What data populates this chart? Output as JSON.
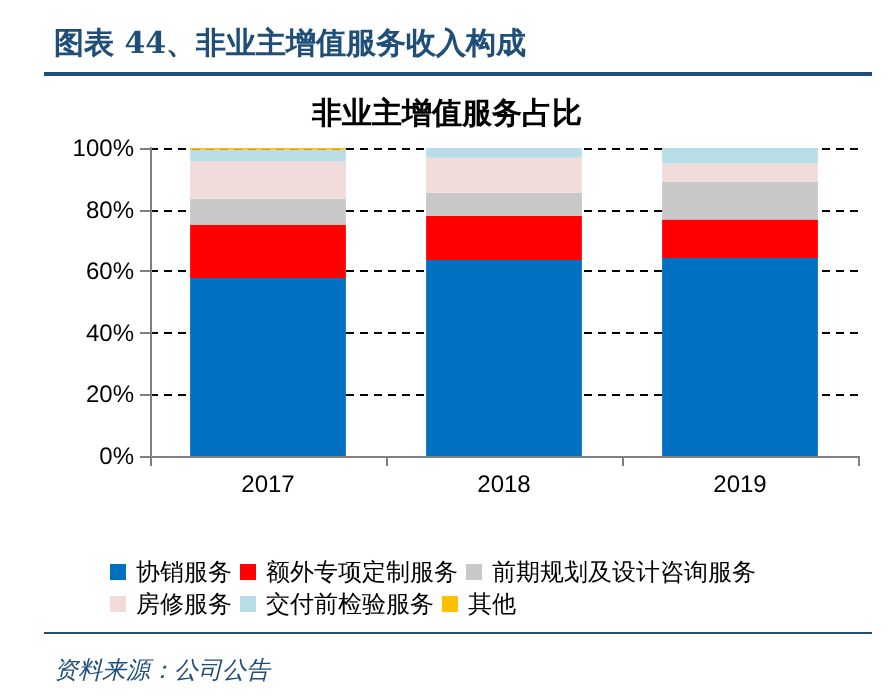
{
  "chart_data": {
    "type": "bar",
    "title": "图表 44、非业主增值服务收入构成",
    "subtitle": "非业主增值服务占比",
    "stacked": true,
    "categories": [
      "2017",
      "2018",
      "2019"
    ],
    "series": [
      {
        "name": "协销服务",
        "color": "#0070c0",
        "values": [
          57.8,
          63.6,
          64.3
        ]
      },
      {
        "name": "额外专项定制服务",
        "color": "#ff0000",
        "values": [
          17.3,
          14.3,
          12.5
        ]
      },
      {
        "name": "前期规划及设计咨询服务",
        "color": "#c8c8c8",
        "values": [
          8.4,
          7.6,
          12.2
        ]
      },
      {
        "name": "房修服务",
        "color": "#f2dcdb",
        "values": [
          12.2,
          11.3,
          6.0
        ]
      },
      {
        "name": "交付前检验服务",
        "color": "#b7dee8",
        "values": [
          3.7,
          3.2,
          5.0
        ]
      },
      {
        "name": "其他",
        "color": "#ffc000",
        "values": [
          0.6,
          0.0,
          0.0
        ]
      }
    ],
    "ylim": [
      0,
      100
    ],
    "yticks": [
      {
        "value": 0,
        "label": "0%"
      },
      {
        "value": 20,
        "label": "20%"
      },
      {
        "value": 40,
        "label": "40%"
      },
      {
        "value": 60,
        "label": "60%"
      },
      {
        "value": 80,
        "label": "80%"
      },
      {
        "value": 100,
        "label": "100%"
      }
    ],
    "grid": "y",
    "legend": "bottom",
    "annotations": [
      "资料来源：公司公告"
    ]
  }
}
